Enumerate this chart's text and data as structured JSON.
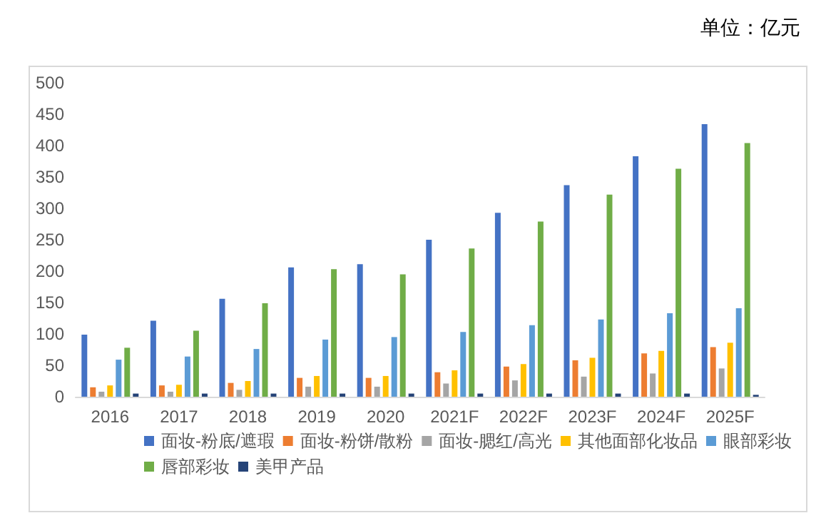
{
  "chart_data": {
    "type": "bar",
    "annotations": [
      "单位：亿元"
    ],
    "categories": [
      "2016",
      "2017",
      "2018",
      "2019",
      "2020",
      "2021F",
      "2022F",
      "2023F",
      "2024F",
      "2025F"
    ],
    "series": [
      {
        "name": "面妆-粉底/遮瑕",
        "color": "#4472c4",
        "values": [
          99,
          121,
          156,
          206,
          211,
          250,
          293,
          337,
          383,
          434
        ]
      },
      {
        "name": "面妆-粉饼/散粉",
        "color": "#ed7d31",
        "values": [
          15,
          18,
          22,
          30,
          30,
          39,
          48,
          58,
          69,
          79
        ]
      },
      {
        "name": "面妆-腮红/高光",
        "color": "#a5a5a5",
        "values": [
          8,
          8,
          11,
          16,
          16,
          21,
          26,
          32,
          37,
          45
        ]
      },
      {
        "name": "其他面部化妆品",
        "color": "#ffc000",
        "values": [
          18,
          19,
          25,
          33,
          33,
          42,
          52,
          62,
          73,
          86
        ]
      },
      {
        "name": "眼部彩妆",
        "color": "#5b9bd5",
        "values": [
          59,
          64,
          76,
          91,
          95,
          103,
          114,
          123,
          133,
          141
        ]
      },
      {
        "name": "唇部彩妆",
        "color": "#70ad47",
        "values": [
          78,
          105,
          149,
          203,
          195,
          236,
          279,
          322,
          363,
          404
        ]
      },
      {
        "name": "美甲产品",
        "color": "#264478",
        "values": [
          5,
          5,
          5,
          5,
          5,
          5,
          5,
          5,
          5,
          3
        ]
      }
    ],
    "ylim": [
      0,
      500
    ],
    "yticks": [
      0,
      50,
      100,
      150,
      200,
      250,
      300,
      350,
      400,
      450,
      500
    ],
    "grid": false,
    "legend": "bottom"
  }
}
